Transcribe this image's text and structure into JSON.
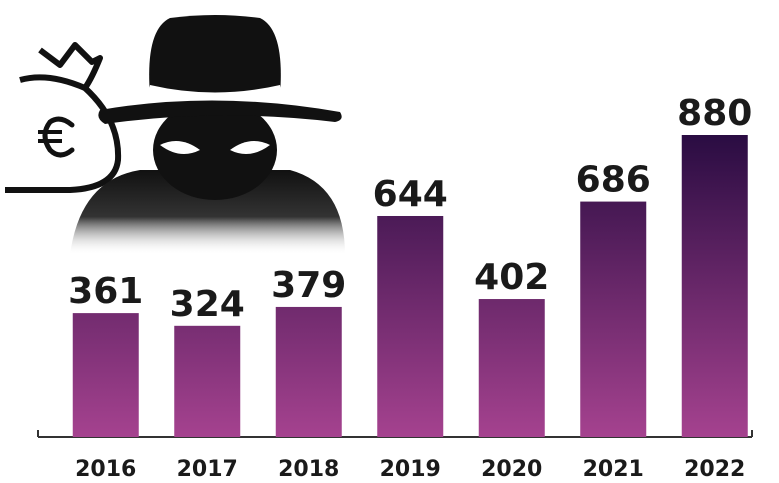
{
  "chart_data": {
    "type": "bar",
    "categories": [
      "2016",
      "2017",
      "2018",
      "2019",
      "2020",
      "2021",
      "2022"
    ],
    "values": [
      361,
      324,
      379,
      644,
      402,
      686,
      880
    ],
    "gradient": [
      "#2a0c42",
      "#a5428f"
    ]
  }
}
